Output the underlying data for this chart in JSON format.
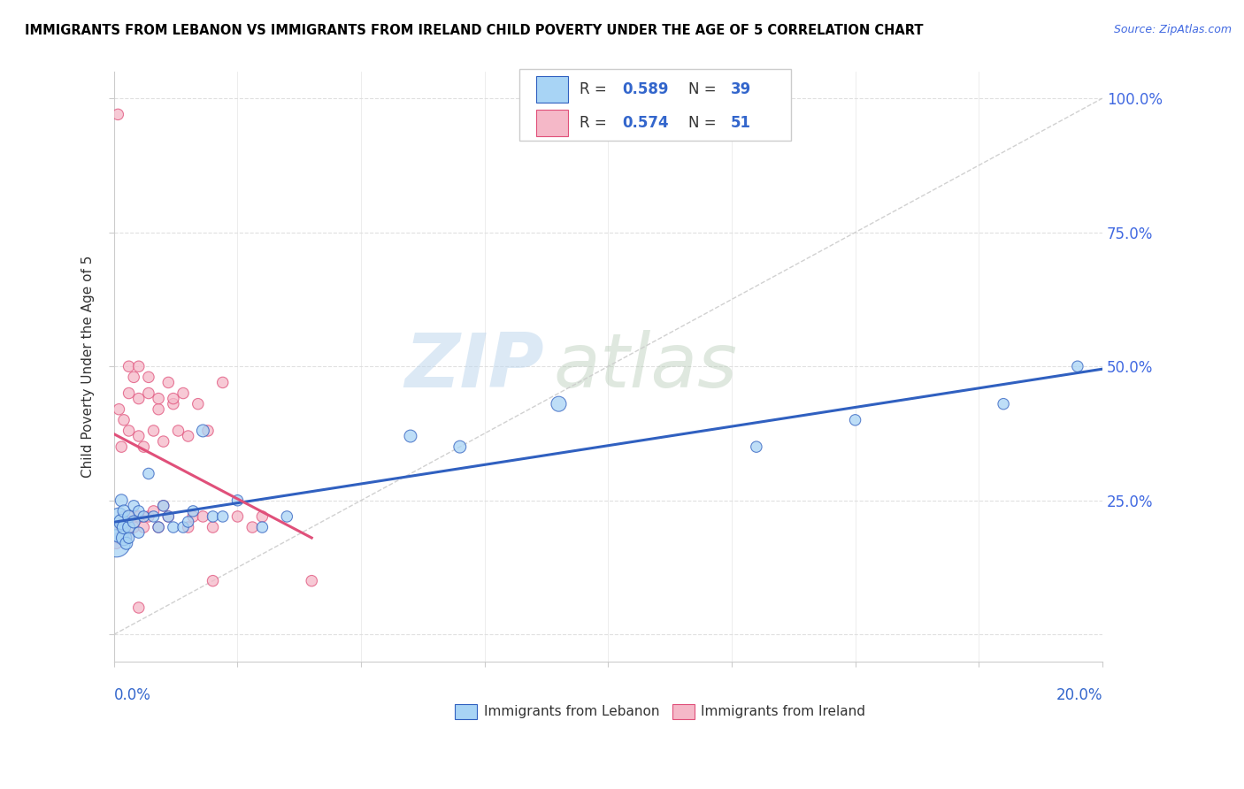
{
  "title": "IMMIGRANTS FROM LEBANON VS IMMIGRANTS FROM IRELAND CHILD POVERTY UNDER THE AGE OF 5 CORRELATION CHART",
  "source": "Source: ZipAtlas.com",
  "ylabel": "Child Poverty Under the Age of 5",
  "xlim": [
    0,
    0.2
  ],
  "ylim": [
    -0.05,
    1.05
  ],
  "watermark_zip": "ZIP",
  "watermark_atlas": "atlas",
  "legend_r1": "0.589",
  "legend_n1": "39",
  "legend_r2": "0.574",
  "legend_n2": "51",
  "color_lebanon": "#A8D4F5",
  "color_ireland": "#F5B8C8",
  "trendline_lebanon": "#3060C0",
  "trendline_ireland": "#E0507A",
  "diagonal_color": "#CCCCCC",
  "lebanon_x": [
    0.0005,
    0.001,
    0.001,
    0.0015,
    0.0015,
    0.002,
    0.002,
    0.002,
    0.0025,
    0.003,
    0.003,
    0.003,
    0.004,
    0.004,
    0.005,
    0.005,
    0.006,
    0.007,
    0.008,
    0.009,
    0.01,
    0.011,
    0.012,
    0.014,
    0.015,
    0.016,
    0.018,
    0.02,
    0.022,
    0.025,
    0.03,
    0.035,
    0.06,
    0.07,
    0.09,
    0.13,
    0.15,
    0.18,
    0.195
  ],
  "lebanon_y": [
    0.17,
    0.19,
    0.22,
    0.21,
    0.25,
    0.18,
    0.2,
    0.23,
    0.17,
    0.2,
    0.22,
    0.18,
    0.21,
    0.24,
    0.19,
    0.23,
    0.22,
    0.3,
    0.22,
    0.2,
    0.24,
    0.22,
    0.2,
    0.2,
    0.21,
    0.23,
    0.38,
    0.22,
    0.22,
    0.25,
    0.2,
    0.22,
    0.37,
    0.35,
    0.43,
    0.35,
    0.4,
    0.43,
    0.5
  ],
  "lebanon_size": [
    500,
    250,
    200,
    150,
    100,
    150,
    120,
    100,
    100,
    100,
    100,
    80,
    100,
    80,
    80,
    80,
    80,
    80,
    80,
    80,
    80,
    80,
    80,
    80,
    80,
    80,
    100,
    80,
    80,
    80,
    80,
    80,
    100,
    100,
    150,
    80,
    80,
    80,
    80
  ],
  "ireland_x": [
    0.0005,
    0.001,
    0.001,
    0.0015,
    0.0015,
    0.002,
    0.002,
    0.0025,
    0.003,
    0.003,
    0.003,
    0.004,
    0.004,
    0.005,
    0.005,
    0.005,
    0.006,
    0.006,
    0.007,
    0.007,
    0.008,
    0.008,
    0.009,
    0.009,
    0.01,
    0.01,
    0.011,
    0.011,
    0.012,
    0.013,
    0.014,
    0.015,
    0.016,
    0.017,
    0.018,
    0.019,
    0.02,
    0.022,
    0.025,
    0.028,
    0.03,
    0.0008,
    0.003,
    0.005,
    0.007,
    0.009,
    0.012,
    0.015,
    0.02,
    0.04,
    0.005
  ],
  "ireland_y": [
    0.17,
    0.18,
    0.42,
    0.2,
    0.35,
    0.22,
    0.4,
    0.18,
    0.22,
    0.38,
    0.45,
    0.2,
    0.48,
    0.22,
    0.44,
    0.37,
    0.2,
    0.35,
    0.22,
    0.45,
    0.23,
    0.38,
    0.2,
    0.42,
    0.24,
    0.36,
    0.22,
    0.47,
    0.43,
    0.38,
    0.45,
    0.2,
    0.22,
    0.43,
    0.22,
    0.38,
    0.2,
    0.47,
    0.22,
    0.2,
    0.22,
    0.97,
    0.5,
    0.5,
    0.48,
    0.44,
    0.44,
    0.37,
    0.1,
    0.1,
    0.05
  ],
  "ireland_size": [
    80,
    80,
    80,
    80,
    80,
    80,
    80,
    80,
    80,
    80,
    80,
    80,
    80,
    80,
    80,
    80,
    80,
    80,
    80,
    80,
    80,
    80,
    80,
    80,
    80,
    80,
    80,
    80,
    80,
    80,
    80,
    80,
    80,
    80,
    80,
    80,
    80,
    80,
    80,
    80,
    80,
    80,
    80,
    80,
    80,
    80,
    80,
    80,
    80,
    80,
    80
  ]
}
